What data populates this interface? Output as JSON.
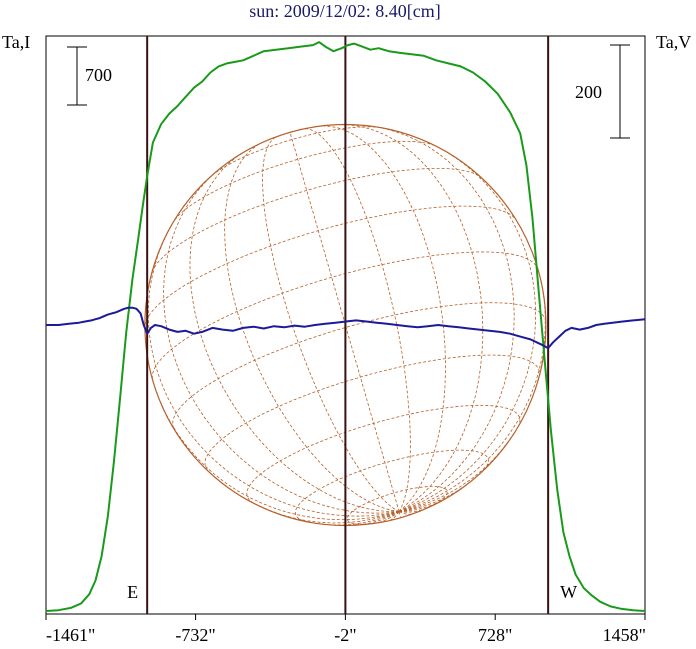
{
  "chart_data": {
    "type": "line",
    "title": "sun: 2009/12/02: 8.40[cm]",
    "left_axis_label": "Ta,I",
    "right_axis_label": "Ta,V",
    "left_scale_label": "700",
    "right_scale_label": "200",
    "x_ticks": [
      {
        "value": -1461,
        "label": "-1461\""
      },
      {
        "value": -732,
        "label": "-732\""
      },
      {
        "value": -2,
        "label": "-2\""
      },
      {
        "value": 728,
        "label": "728\""
      },
      {
        "value": 1458,
        "label": "1458\""
      }
    ],
    "xlim": [
      -1461,
      1458
    ],
    "limb_markers": [
      {
        "x": -968,
        "label": "E"
      },
      {
        "x": -2,
        "label": ""
      },
      {
        "x": 986,
        "label": "W"
      }
    ],
    "solar_disk": {
      "center_x": -2,
      "radius_arcsec": 977,
      "color": "#b5602a"
    },
    "series": [
      {
        "color": "#1a9a1a",
        "ylim": [
          0,
          3800
        ],
        "x": [
          -1461,
          -1400,
          -1340,
          -1290,
          -1250,
          -1220,
          -1190,
          -1160,
          -1130,
          -1100,
          -1070,
          -1040,
          -1010,
          -990,
          -968,
          -940,
          -900,
          -860,
          -820,
          -780,
          -740,
          -700,
          -660,
          -620,
          -580,
          -540,
          -500,
          -450,
          -400,
          -340,
          -280,
          -220,
          -160,
          -130,
          -100,
          -60,
          -20,
          10,
          40,
          80,
          120,
          160,
          210,
          260,
          320,
          380,
          440,
          500,
          560,
          620,
          680,
          740,
          800,
          850,
          880,
          910,
          940,
          970,
          1000,
          1030,
          1060,
          1090,
          1120,
          1160,
          1200,
          1240,
          1290,
          1340,
          1400,
          1458
        ],
        "values": [
          20,
          25,
          40,
          70,
          130,
          220,
          380,
          640,
          1000,
          1420,
          1850,
          2200,
          2480,
          2680,
          2880,
          3100,
          3220,
          3290,
          3340,
          3400,
          3460,
          3500,
          3560,
          3600,
          3620,
          3630,
          3640,
          3670,
          3700,
          3710,
          3720,
          3730,
          3740,
          3760,
          3730,
          3700,
          3720,
          3740,
          3750,
          3730,
          3710,
          3720,
          3700,
          3690,
          3680,
          3670,
          3640,
          3620,
          3600,
          3560,
          3500,
          3420,
          3300,
          3160,
          2950,
          2600,
          2120,
          1650,
          1200,
          820,
          540,
          380,
          260,
          170,
          120,
          80,
          50,
          35,
          25,
          20
        ]
      },
      {
        "color": "#1a1a9a",
        "ylim": [
          -500,
          500
        ],
        "x": [
          -1461,
          -1400,
          -1350,
          -1300,
          -1270,
          -1240,
          -1220,
          -1200,
          -1180,
          -1160,
          -1140,
          -1120,
          -1100,
          -1080,
          -1060,
          -1040,
          -1020,
          -1000,
          -985,
          -968,
          -950,
          -930,
          -900,
          -860,
          -820,
          -780,
          -740,
          -700,
          -650,
          -600,
          -550,
          -500,
          -450,
          -400,
          -350,
          -300,
          -250,
          -200,
          -150,
          -100,
          -50,
          0,
          50,
          100,
          150,
          200,
          250,
          300,
          350,
          400,
          450,
          500,
          550,
          600,
          650,
          700,
          750,
          800,
          850,
          900,
          930,
          960,
          986,
          1010,
          1040,
          1070,
          1100,
          1140,
          1180,
          1220,
          1260,
          1300,
          1350,
          1400,
          1458
        ],
        "values": [
          0,
          0,
          2,
          4,
          6,
          8,
          10,
          12,
          15,
          18,
          20,
          22,
          25,
          28,
          30,
          30,
          28,
          20,
          0,
          -15,
          -5,
          0,
          -2,
          -8,
          -12,
          -10,
          -15,
          -12,
          -5,
          -8,
          -10,
          -5,
          -3,
          -6,
          -2,
          -4,
          -1,
          -3,
          0,
          2,
          4,
          6,
          8,
          6,
          4,
          2,
          0,
          -2,
          -4,
          -2,
          0,
          -2,
          -4,
          -6,
          -8,
          -10,
          -12,
          -15,
          -20,
          -25,
          -30,
          -35,
          -40,
          -30,
          -20,
          -10,
          -5,
          -8,
          -5,
          0,
          2,
          4,
          6,
          8,
          10
        ]
      }
    ]
  }
}
